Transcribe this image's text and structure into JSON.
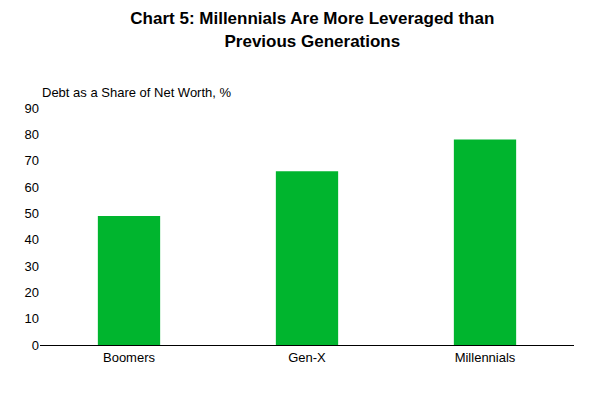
{
  "chart_data": {
    "type": "bar",
    "title": "Chart 5: Millennials Are More Leveraged than\nPrevious Generations",
    "ylabel": "Debt as a Share of Net Worth, %",
    "categories": [
      "Boomers",
      "Gen-X",
      "Millennials"
    ],
    "values": [
      49,
      66,
      78
    ],
    "color": "#00b52e",
    "ylim": [
      0,
      90
    ],
    "yticks": [
      0,
      10,
      20,
      30,
      40,
      50,
      60,
      70,
      80,
      90
    ],
    "grid": false
  }
}
